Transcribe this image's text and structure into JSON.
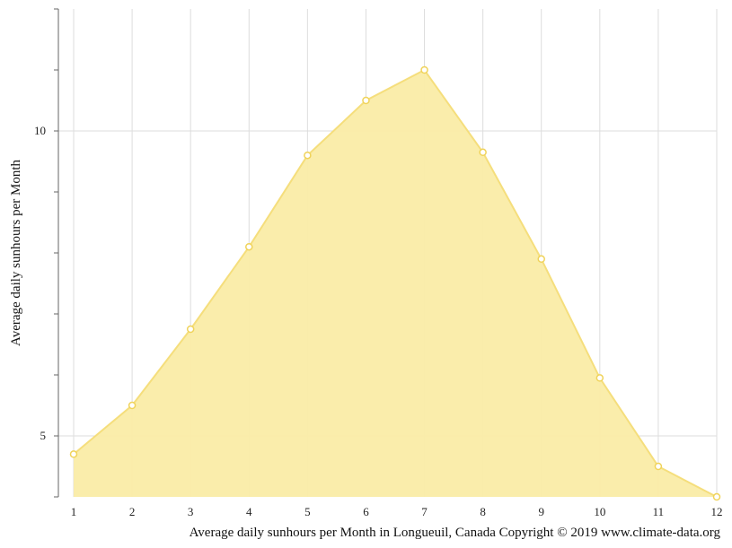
{
  "chart_data": {
    "type": "area",
    "ylabel": "Average daily sunhours per Month",
    "xlabel": "",
    "caption": "Average daily sunhours per Month in Longueuil, Canada Copyright © 2019 www.climate-data.org",
    "x": [
      1,
      2,
      3,
      4,
      5,
      6,
      7,
      8,
      9,
      10,
      11,
      12
    ],
    "x_tick_labels": [
      "1",
      "2",
      "3",
      "4",
      "5",
      "6",
      "7",
      "8",
      "9",
      "10",
      "11",
      "12"
    ],
    "y_tick_labels": [
      "5",
      "10"
    ],
    "series": [
      {
        "values": [
          4.7,
          5.5,
          6.75,
          8.1,
          9.6,
          10.5,
          11.0,
          9.65,
          7.9,
          5.95,
          4.5,
          4.0
        ]
      }
    ],
    "ylim": [
      4.0,
      12.0
    ],
    "y_major_ticks": [
      5,
      10
    ],
    "y_minor_ticks": [
      4,
      6,
      7,
      8,
      9,
      11,
      12
    ],
    "grid": true,
    "colors": {
      "fill": "#faeca7",
      "line": "#f5de7c",
      "marker_fill": "#ffffff",
      "marker_stroke": "#f0d35a",
      "grid": "#dddddd",
      "axis": "#666666"
    }
  }
}
